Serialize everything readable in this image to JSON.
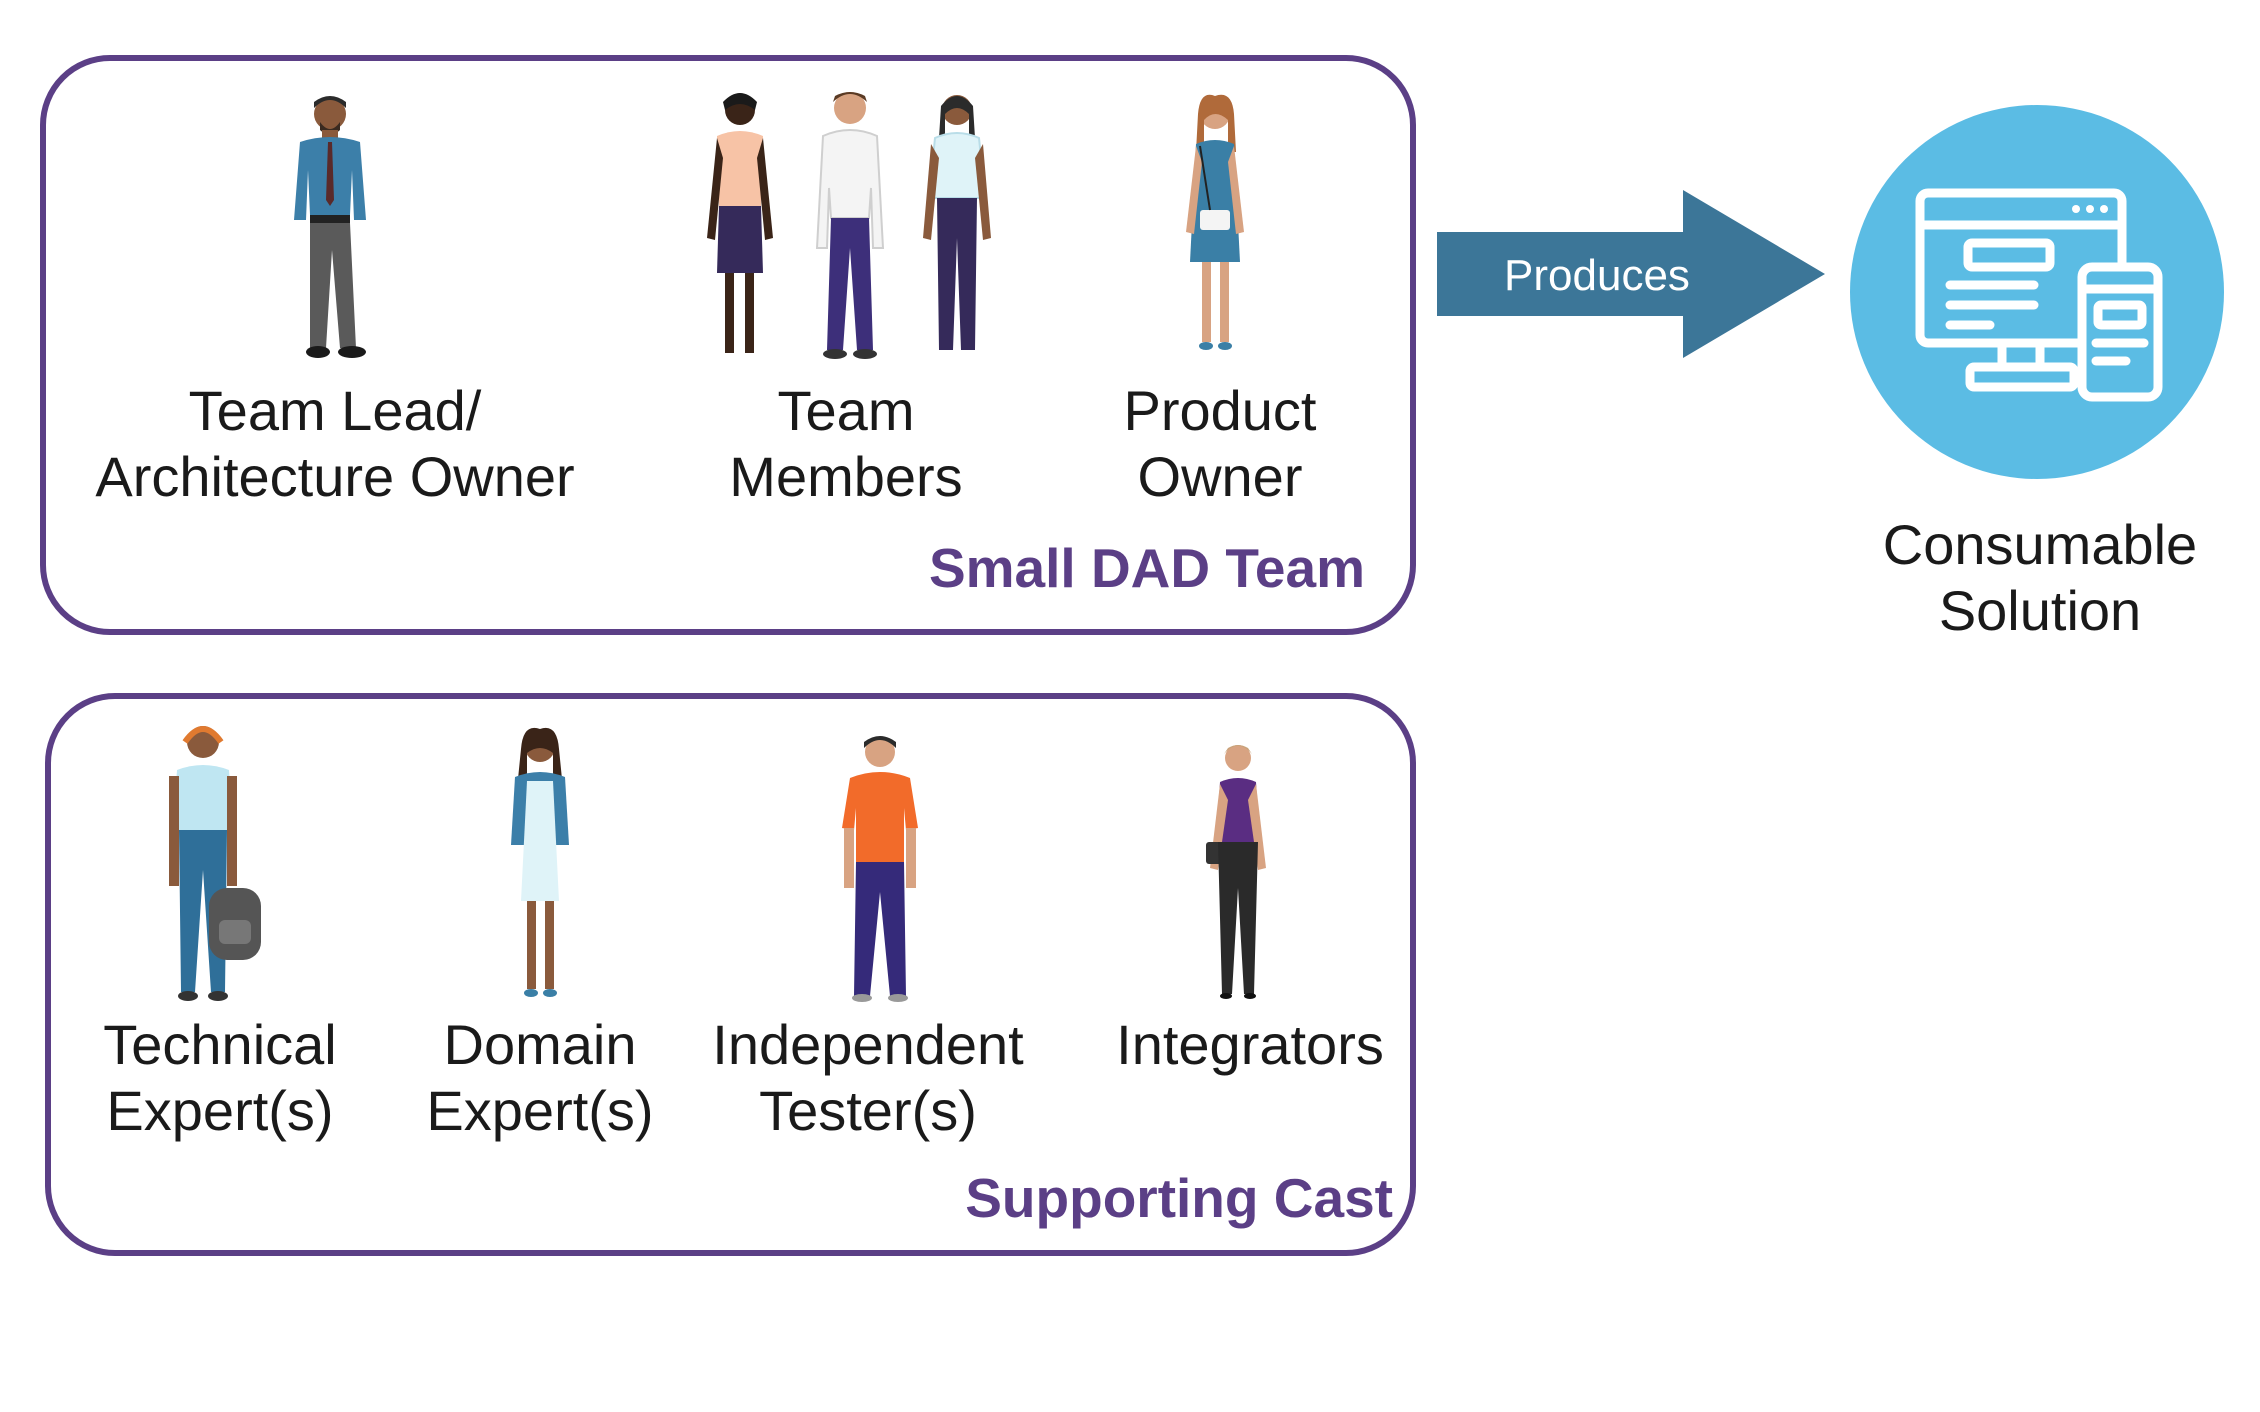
{
  "small_team": {
    "title": "Small DAD Team",
    "roles": [
      {
        "lines": [
          "Team Lead/",
          "Architecture Owner"
        ]
      },
      {
        "lines": [
          "Team",
          "Members"
        ]
      },
      {
        "lines": [
          "Product",
          "Owner"
        ]
      }
    ]
  },
  "supporting_cast": {
    "title": "Supporting Cast",
    "roles": [
      {
        "lines": [
          "Technical",
          "Expert(s)"
        ]
      },
      {
        "lines": [
          "Domain",
          "Expert(s)"
        ]
      },
      {
        "lines": [
          "Independent",
          "Tester(s)"
        ]
      },
      {
        "lines": [
          "Integrators",
          ""
        ]
      }
    ]
  },
  "produces_arrow": {
    "label": "Produces"
  },
  "solution": {
    "lines": [
      "Consumable",
      "Solution"
    ],
    "icon": "computer-and-mobile-icon"
  },
  "colors": {
    "frame": "#5b3f86",
    "arrow": "#3c7698",
    "solution_circle": "#5bbce4"
  }
}
